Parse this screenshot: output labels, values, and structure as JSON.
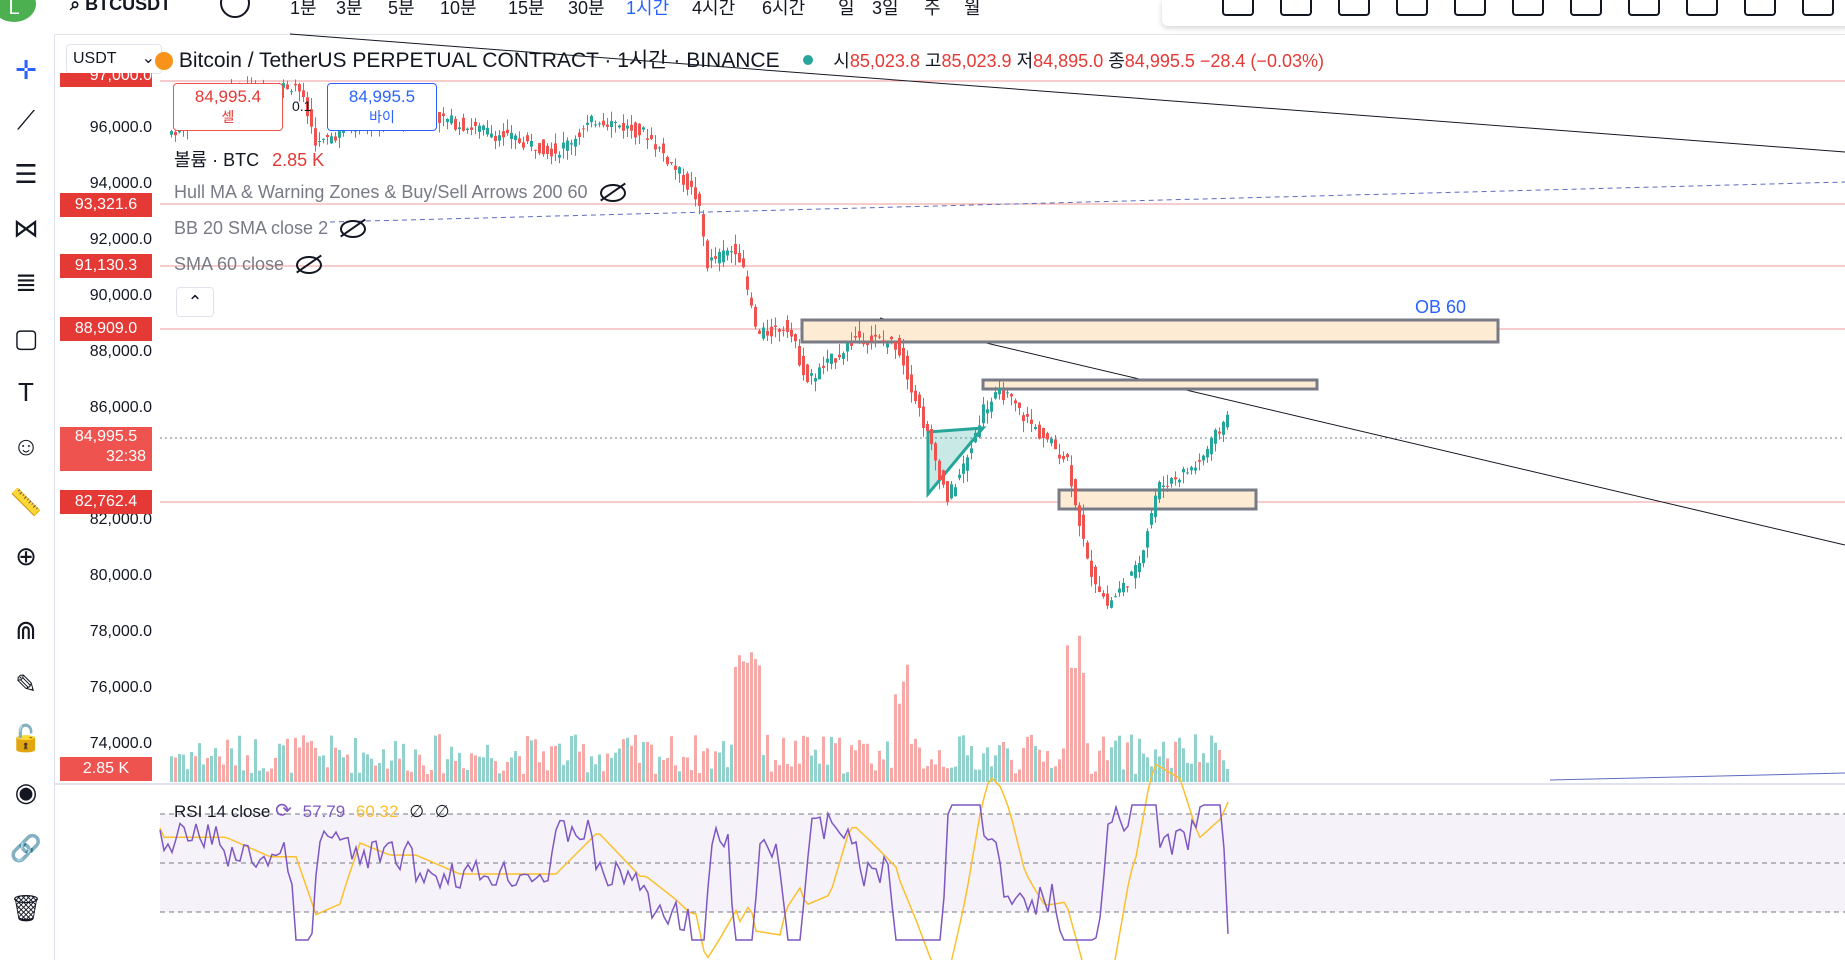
{
  "topbar": {
    "logo_letter": "L",
    "symbol": "BTCUSDT",
    "timeframes": [
      "1분",
      "3분",
      "5분",
      "10분",
      "15분",
      "30분",
      "1시간",
      "4시간",
      "6시간",
      "일",
      "3일",
      "주",
      "월"
    ],
    "active_timeframe": "1시간"
  },
  "legend": {
    "currency": "USDT",
    "title": "Bitcoin / TetherUS PERPETUAL CONTRACT · 1시간 · BINANCE",
    "open_label": "시",
    "open": "85,023.8",
    "high_label": "고",
    "high": "85,023.9",
    "low_label": "저",
    "low": "84,895.0",
    "close_label": "종",
    "close": "84,995.5",
    "change": "−28.4 (−0.03%)"
  },
  "trade": {
    "sell_price": "84,995.4",
    "sell_label": "셀",
    "spread": "0.1",
    "buy_price": "84,995.5",
    "buy_label": "바이"
  },
  "indicators": {
    "volume": "볼륨 · BTC",
    "volume_value": "2.85 K",
    "hull": "Hull MA & Warning Zones & Buy/Sell Arrows 200 60",
    "bb": "BB 20 SMA close 2",
    "sma": "SMA 60 close",
    "ob_label": "OB 60",
    "rsi_label": "RSI 14 close",
    "rsi_value": "57.79",
    "rsi_ma": "60.32",
    "rsi_empty1": "∅",
    "rsi_empty2": "∅"
  },
  "axis": {
    "ticks": [
      "96,000.0",
      "94,000.0",
      "92,000.0",
      "90,000.0",
      "88,000.0",
      "86,000.0",
      "82,000.0",
      "80,000.0",
      "78,000.0",
      "76,000.0",
      "74,000.0"
    ],
    "top_partial": "97,000.0"
  },
  "price_tags": {
    "t1": "93,321.6",
    "t2": "91,130.3",
    "t3": "88,909.0",
    "current": "84,995.5",
    "countdown": "32:38",
    "t4": "82,762.4",
    "volume": "2.85 K"
  },
  "colors": {
    "up": "#26a69a",
    "down": "#ef5350",
    "accent": "#2962ff",
    "rsi": "#7e57c2",
    "rsi_ma": "#fbc02d",
    "ob_fill": "#fdebd3"
  }
}
